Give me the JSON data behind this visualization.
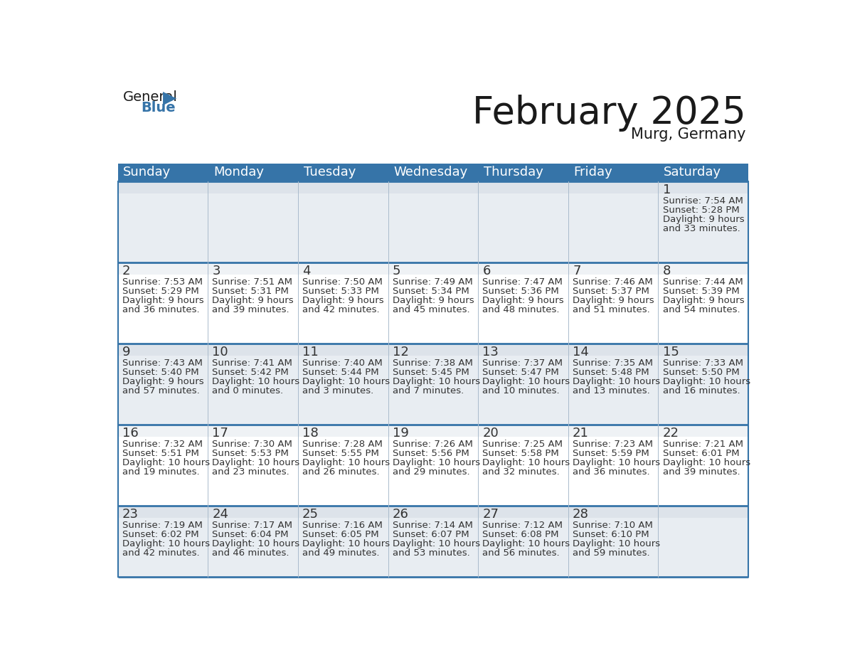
{
  "title": "February 2025",
  "subtitle": "Murg, Germany",
  "header_color": "#3674a8",
  "header_text_color": "#FFFFFF",
  "row_bg_light": "#e8edf2",
  "row_bg_white": "#FFFFFF",
  "day_num_bg": "#dce4ec",
  "border_color": "#3674a8",
  "text_color": "#333333",
  "days_of_week": [
    "Sunday",
    "Monday",
    "Tuesday",
    "Wednesday",
    "Thursday",
    "Friday",
    "Saturday"
  ],
  "title_fontsize": 38,
  "subtitle_fontsize": 15,
  "header_fontsize": 13,
  "day_number_fontsize": 13,
  "info_fontsize": 9.5,
  "logo_general_fontsize": 14,
  "logo_blue_fontsize": 14,
  "calendar": [
    [
      null,
      null,
      null,
      null,
      null,
      null,
      {
        "day": 1,
        "sunrise": "7:54 AM",
        "sunset": "5:28 PM",
        "daylight_line1": "9 hours",
        "daylight_line2": "and 33 minutes."
      }
    ],
    [
      {
        "day": 2,
        "sunrise": "7:53 AM",
        "sunset": "5:29 PM",
        "daylight_line1": "9 hours",
        "daylight_line2": "and 36 minutes."
      },
      {
        "day": 3,
        "sunrise": "7:51 AM",
        "sunset": "5:31 PM",
        "daylight_line1": "9 hours",
        "daylight_line2": "and 39 minutes."
      },
      {
        "day": 4,
        "sunrise": "7:50 AM",
        "sunset": "5:33 PM",
        "daylight_line1": "9 hours",
        "daylight_line2": "and 42 minutes."
      },
      {
        "day": 5,
        "sunrise": "7:49 AM",
        "sunset": "5:34 PM",
        "daylight_line1": "9 hours",
        "daylight_line2": "and 45 minutes."
      },
      {
        "day": 6,
        "sunrise": "7:47 AM",
        "sunset": "5:36 PM",
        "daylight_line1": "9 hours",
        "daylight_line2": "and 48 minutes."
      },
      {
        "day": 7,
        "sunrise": "7:46 AM",
        "sunset": "5:37 PM",
        "daylight_line1": "9 hours",
        "daylight_line2": "and 51 minutes."
      },
      {
        "day": 8,
        "sunrise": "7:44 AM",
        "sunset": "5:39 PM",
        "daylight_line1": "9 hours",
        "daylight_line2": "and 54 minutes."
      }
    ],
    [
      {
        "day": 9,
        "sunrise": "7:43 AM",
        "sunset": "5:40 PM",
        "daylight_line1": "9 hours",
        "daylight_line2": "and 57 minutes."
      },
      {
        "day": 10,
        "sunrise": "7:41 AM",
        "sunset": "5:42 PM",
        "daylight_line1": "10 hours",
        "daylight_line2": "and 0 minutes."
      },
      {
        "day": 11,
        "sunrise": "7:40 AM",
        "sunset": "5:44 PM",
        "daylight_line1": "10 hours",
        "daylight_line2": "and 3 minutes."
      },
      {
        "day": 12,
        "sunrise": "7:38 AM",
        "sunset": "5:45 PM",
        "daylight_line1": "10 hours",
        "daylight_line2": "and 7 minutes."
      },
      {
        "day": 13,
        "sunrise": "7:37 AM",
        "sunset": "5:47 PM",
        "daylight_line1": "10 hours",
        "daylight_line2": "and 10 minutes."
      },
      {
        "day": 14,
        "sunrise": "7:35 AM",
        "sunset": "5:48 PM",
        "daylight_line1": "10 hours",
        "daylight_line2": "and 13 minutes."
      },
      {
        "day": 15,
        "sunrise": "7:33 AM",
        "sunset": "5:50 PM",
        "daylight_line1": "10 hours",
        "daylight_line2": "and 16 minutes."
      }
    ],
    [
      {
        "day": 16,
        "sunrise": "7:32 AM",
        "sunset": "5:51 PM",
        "daylight_line1": "10 hours",
        "daylight_line2": "and 19 minutes."
      },
      {
        "day": 17,
        "sunrise": "7:30 AM",
        "sunset": "5:53 PM",
        "daylight_line1": "10 hours",
        "daylight_line2": "and 23 minutes."
      },
      {
        "day": 18,
        "sunrise": "7:28 AM",
        "sunset": "5:55 PM",
        "daylight_line1": "10 hours",
        "daylight_line2": "and 26 minutes."
      },
      {
        "day": 19,
        "sunrise": "7:26 AM",
        "sunset": "5:56 PM",
        "daylight_line1": "10 hours",
        "daylight_line2": "and 29 minutes."
      },
      {
        "day": 20,
        "sunrise": "7:25 AM",
        "sunset": "5:58 PM",
        "daylight_line1": "10 hours",
        "daylight_line2": "and 32 minutes."
      },
      {
        "day": 21,
        "sunrise": "7:23 AM",
        "sunset": "5:59 PM",
        "daylight_line1": "10 hours",
        "daylight_line2": "and 36 minutes."
      },
      {
        "day": 22,
        "sunrise": "7:21 AM",
        "sunset": "6:01 PM",
        "daylight_line1": "10 hours",
        "daylight_line2": "and 39 minutes."
      }
    ],
    [
      {
        "day": 23,
        "sunrise": "7:19 AM",
        "sunset": "6:02 PM",
        "daylight_line1": "10 hours",
        "daylight_line2": "and 42 minutes."
      },
      {
        "day": 24,
        "sunrise": "7:17 AM",
        "sunset": "6:04 PM",
        "daylight_line1": "10 hours",
        "daylight_line2": "and 46 minutes."
      },
      {
        "day": 25,
        "sunrise": "7:16 AM",
        "sunset": "6:05 PM",
        "daylight_line1": "10 hours",
        "daylight_line2": "and 49 minutes."
      },
      {
        "day": 26,
        "sunrise": "7:14 AM",
        "sunset": "6:07 PM",
        "daylight_line1": "10 hours",
        "daylight_line2": "and 53 minutes."
      },
      {
        "day": 27,
        "sunrise": "7:12 AM",
        "sunset": "6:08 PM",
        "daylight_line1": "10 hours",
        "daylight_line2": "and 56 minutes."
      },
      {
        "day": 28,
        "sunrise": "7:10 AM",
        "sunset": "6:10 PM",
        "daylight_line1": "10 hours",
        "daylight_line2": "and 59 minutes."
      },
      null
    ]
  ]
}
